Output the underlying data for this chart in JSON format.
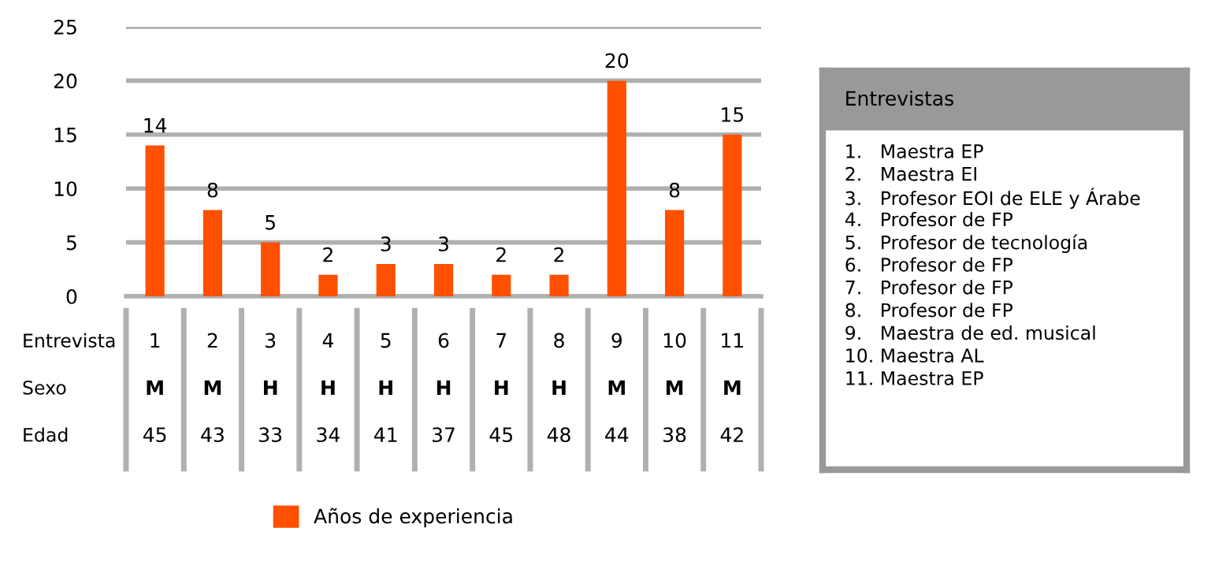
{
  "chart_data": [
    {
      "type": "bar",
      "categories": [
        "1",
        "2",
        "3",
        "4",
        "5",
        "6",
        "7",
        "8",
        "9",
        "10",
        "11"
      ],
      "series": [
        {
          "name": "Años de experiencia",
          "color": "#ff5000",
          "values": [
            14,
            8,
            5,
            2,
            3,
            3,
            2,
            2,
            20,
            8,
            15
          ]
        }
      ],
      "ylim": [
        0,
        25
      ],
      "yticks": [
        0,
        5,
        10,
        15,
        20,
        25
      ],
      "grid": "y",
      "data_labels": true,
      "legend": "bottom",
      "annotations": [
        "Entrevista",
        "Sexo",
        "Edad",
        "M",
        "M",
        "H",
        "H",
        "H",
        "H",
        "H",
        "H",
        "M",
        "M",
        "M",
        "45",
        "43",
        "33",
        "34",
        "41",
        "37",
        "45",
        "48",
        "44",
        "38",
        "42"
      ]
    },
    {
      "type": "other",
      "title": "Entrevistas",
      "annotations": [
        "1.   Maestra EP",
        "2.   Maestra EI",
        "3.   Profesor EOI de ELE y Árabe",
        "4.   Profesor de FP",
        "5.   Profesor de tecnología",
        "6.   Profesor de FP",
        "7.   Profesor de FP",
        "8.   Profesor de FP",
        "9.   Maestra de ed. musical",
        "10. Maestra AL",
        "11. Maestra EP"
      ]
    }
  ]
}
